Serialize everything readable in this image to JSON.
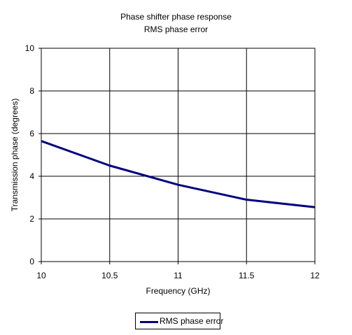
{
  "chart_data": {
    "type": "line",
    "title": "Phase shifter phase response",
    "subtitle": "RMS phase error",
    "xlabel": "Frequency (GHz)",
    "ylabel": "Transmission phase (degrees)",
    "xlim": [
      10,
      12
    ],
    "ylim": [
      0,
      10
    ],
    "xticks": [
      10,
      10.5,
      11,
      11.5,
      12
    ],
    "xtick_labels": [
      "10",
      "10.5",
      "11",
      "11.5",
      "12"
    ],
    "yticks": [
      0,
      2,
      4,
      6,
      8,
      10
    ],
    "ytick_labels": [
      "0",
      "2",
      "4",
      "6",
      "8",
      "10"
    ],
    "grid": true,
    "legend": "bottom",
    "series": [
      {
        "name": "RMS phase error",
        "color": "#000080",
        "x": [
          10,
          10.5,
          11,
          11.5,
          12
        ],
        "y": [
          5.65,
          4.5,
          3.6,
          2.9,
          2.55
        ]
      }
    ]
  }
}
